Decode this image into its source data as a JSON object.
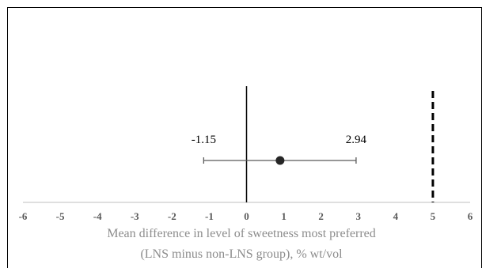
{
  "chart_data": {
    "type": "scatter",
    "title": "",
    "xlabel_line1": "Mean difference in level of sweetness most preferred",
    "xlabel_line2": "(LNS minus non-LNS group), % wt/vol",
    "ylabel": "",
    "xlim": [
      -6,
      6
    ],
    "x_ticks": [
      "-6",
      "-5",
      "-4",
      "-3",
      "-2",
      "-1",
      "0",
      "1",
      "2",
      "3",
      "4",
      "5",
      "6"
    ],
    "point": {
      "x": 0.9,
      "ci_lower": -1.15,
      "ci_upper": 2.94
    },
    "ci_lower_label": "-1.15",
    "ci_upper_label": "2.94",
    "reference_line_x": 0,
    "threshold_line_x": 5,
    "threshold_line_style": "dashed",
    "grid": false,
    "colors": {
      "axis": "#bfbfbf",
      "tick_text": "#595959",
      "error_bar": "#595959",
      "point": "#262626",
      "reference_line": "#000000",
      "threshold_line": "#000000",
      "axis_title": "#8c8c8c"
    }
  }
}
